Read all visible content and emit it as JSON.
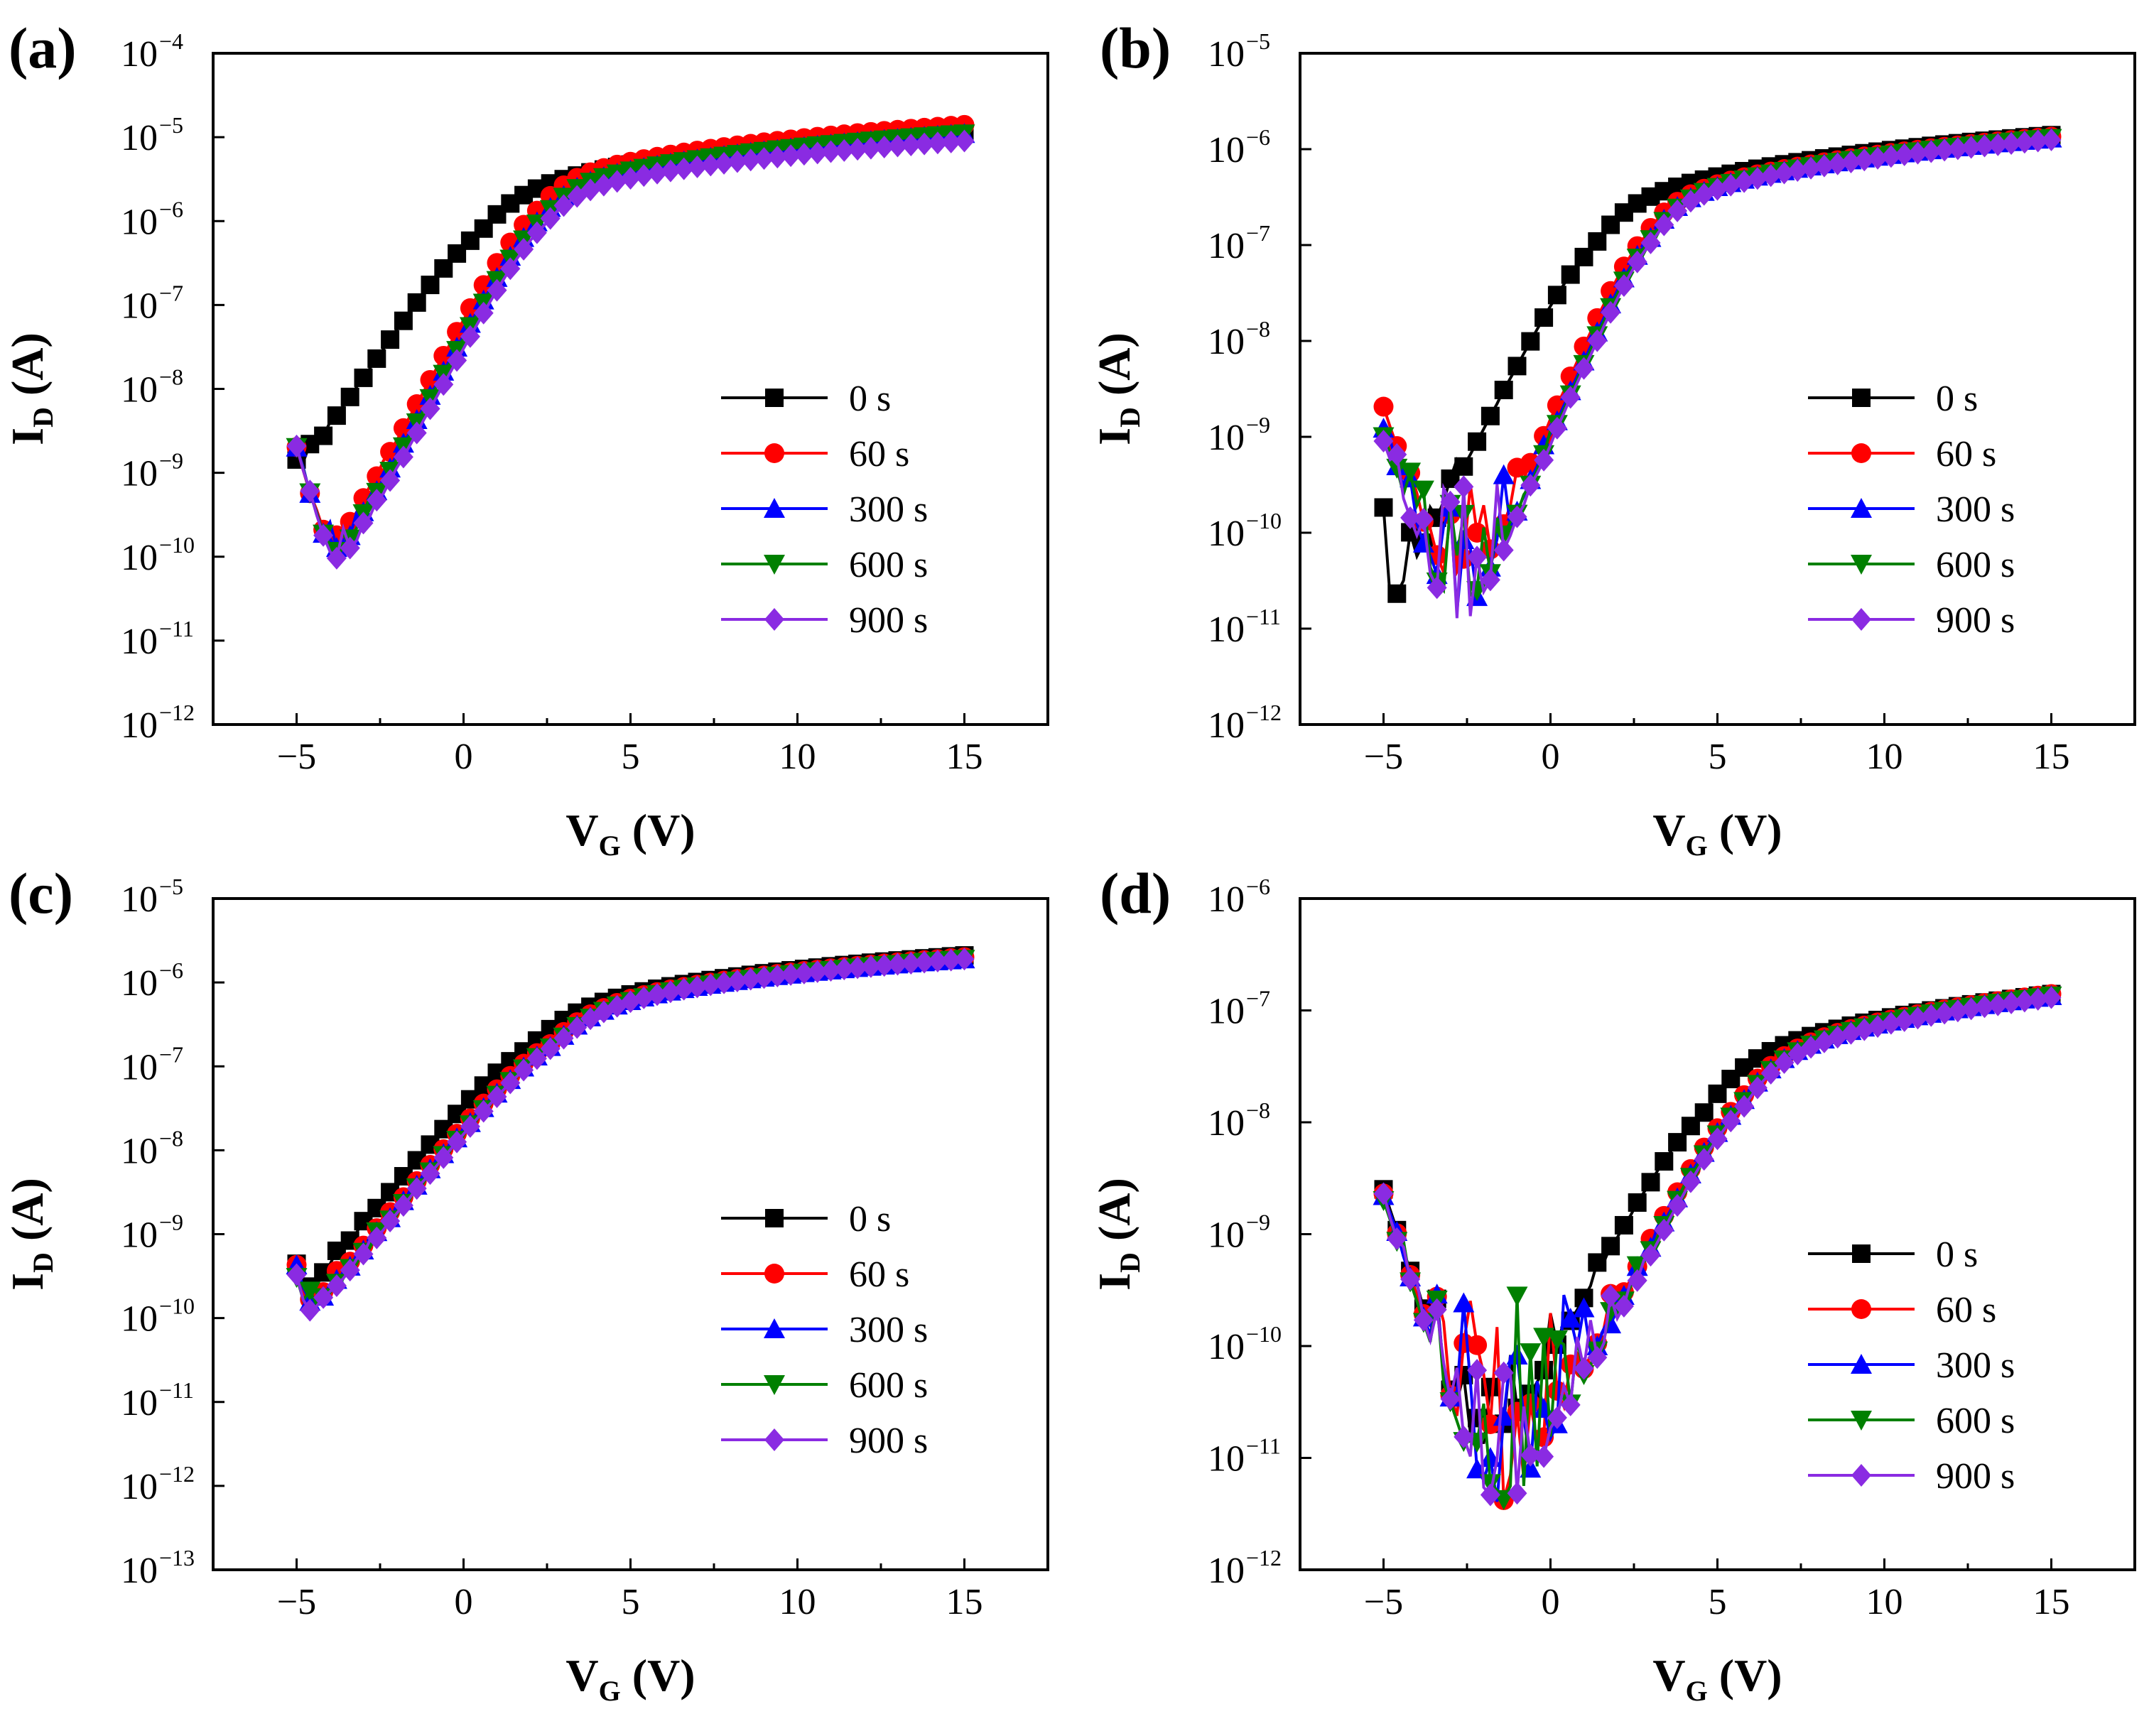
{
  "figure": {
    "series_styles": [
      {
        "name": "0 s",
        "color": "#000000",
        "marker": "square"
      },
      {
        "name": "60 s",
        "color": "#ff0000",
        "marker": "circle"
      },
      {
        "name": "300 s",
        "color": "#0000ff",
        "marker": "triangle-up"
      },
      {
        "name": "600 s",
        "color": "#008000",
        "marker": "triangle-down"
      },
      {
        "name": "900 s",
        "color": "#8a2be2",
        "marker": "diamond"
      }
    ]
  },
  "chart_data": [
    {
      "panel": "(a)",
      "type": "line",
      "xlabel_main": "V",
      "xlabel_sub": "G",
      "xlabel_unit": " (V)",
      "ylabel_main": "I",
      "ylabel_sub": "D",
      "ylabel_unit": " (A)",
      "xlim": [
        -7.5,
        17.5
      ],
      "xticks": [
        -5,
        0,
        5,
        10,
        15
      ],
      "xtick_labels": [
        "−5",
        "0",
        "5",
        "10",
        "15"
      ],
      "ylim_exp": [
        -12,
        -4
      ],
      "yticks_exp": [
        -12,
        -11,
        -10,
        -9,
        -8,
        -7,
        -6,
        -5,
        -4
      ],
      "ytick_base": "10",
      "ytick_exps": [
        "−12",
        "−11",
        "−10",
        "−9",
        "−8",
        "−7",
        "−6",
        "−5",
        "−4"
      ],
      "legend_position": "center-right",
      "series": [
        {
          "name": "0 s",
          "vth": 0.5,
          "ss": 0.75,
          "ion": 1.2e-05,
          "va": 2.0,
          "off": 3e-11,
          "noise": 1.4,
          "start": 4.5e-10,
          "decay": 0.3,
          "tail": 2.0,
          "seed": 1
        },
        {
          "name": "60 s",
          "vth": 2.2,
          "ss": 0.6,
          "ion": 1.4e-05,
          "va": 3.0,
          "off": 1.5e-11,
          "noise": 1.0,
          "start": 2e-09,
          "decay": 0.7,
          "tail": 2.5,
          "seed": 2
        },
        {
          "name": "300 s",
          "vth": 2.35,
          "ss": 0.6,
          "ion": 1.1e-05,
          "va": 3.2,
          "off": 1.5e-11,
          "noise": 1.0,
          "start": 2e-09,
          "decay": 0.7,
          "tail": 2.5,
          "seed": 3
        },
        {
          "name": "600 s",
          "vth": 2.4,
          "ss": 0.6,
          "ion": 1.1e-05,
          "va": 3.2,
          "off": 1.5e-11,
          "noise": 1.1,
          "start": 2e-09,
          "decay": 0.7,
          "tail": 2.5,
          "seed": 4
        },
        {
          "name": "900 s",
          "vth": 2.45,
          "ss": 0.6,
          "ion": 9e-06,
          "va": 3.2,
          "off": 1.3e-11,
          "noise": 1.0,
          "start": 2e-09,
          "decay": 0.7,
          "tail": 2.5,
          "seed": 5
        }
      ]
    },
    {
      "panel": "(b)",
      "type": "line",
      "xlabel_main": "V",
      "xlabel_sub": "G",
      "xlabel_unit": " (V)",
      "ylabel_main": "I",
      "ylabel_sub": "D",
      "ylabel_unit": " (A)",
      "xlim": [
        -7.5,
        17.5
      ],
      "xticks": [
        -5,
        0,
        5,
        10,
        15
      ],
      "xtick_labels": [
        "−5",
        "0",
        "5",
        "10",
        "15"
      ],
      "ylim_exp": [
        -12,
        -5
      ],
      "yticks_exp": [
        -12,
        -11,
        -10,
        -9,
        -8,
        -7,
        -6,
        -5
      ],
      "ytick_base": "10",
      "ytick_exps": [
        "−12",
        "−11",
        "−10",
        "−9",
        "−8",
        "−7",
        "−6",
        "−5"
      ],
      "legend_position": "center-right",
      "series": [
        {
          "name": "0 s",
          "vth": 1.3,
          "ss": 0.65,
          "ion": 1.4e-06,
          "va": 2.2,
          "off": 1e-11,
          "noise": 1.5,
          "start": 8e-12,
          "decay": 0.3,
          "tail": 1.0,
          "seed": 11
        },
        {
          "name": "60 s",
          "vth": 2.8,
          "ss": 0.55,
          "ion": 1.35e-06,
          "va": 2.6,
          "off": 1.5e-11,
          "noise": 1.3,
          "start": 2e-09,
          "decay": 1.0,
          "tail": 2.0,
          "seed": 12
        },
        {
          "name": "300 s",
          "vth": 3.0,
          "ss": 0.55,
          "ion": 1.3e-06,
          "va": 2.7,
          "off": 1.5e-11,
          "noise": 1.4,
          "start": 1.2e-09,
          "decay": 1.0,
          "tail": 2.0,
          "seed": 13
        },
        {
          "name": "600 s",
          "vth": 3.05,
          "ss": 0.55,
          "ion": 1.3e-06,
          "va": 2.7,
          "off": 1.5e-11,
          "noise": 1.4,
          "start": 1e-09,
          "decay": 1.0,
          "tail": 2.0,
          "seed": 14
        },
        {
          "name": "900 s",
          "vth": 3.1,
          "ss": 0.55,
          "ion": 1.25e-06,
          "va": 2.7,
          "off": 1.2e-11,
          "noise": 1.5,
          "start": 9e-10,
          "decay": 1.0,
          "tail": 2.0,
          "seed": 15
        }
      ]
    },
    {
      "panel": "(c)",
      "type": "line",
      "xlabel_main": "V",
      "xlabel_sub": "G",
      "xlabel_unit": " (V)",
      "ylabel_main": "I",
      "ylabel_sub": "D",
      "ylabel_unit": " (A)",
      "xlim": [
        -7.5,
        17.5
      ],
      "xticks": [
        -5,
        0,
        5,
        10,
        15
      ],
      "xtick_labels": [
        "−5",
        "0",
        "5",
        "10",
        "15"
      ],
      "ylim_exp": [
        -13,
        -5
      ],
      "yticks_exp": [
        -13,
        -12,
        -11,
        -10,
        -9,
        -8,
        -7,
        -6,
        -5
      ],
      "ytick_base": "10",
      "ytick_exps": [
        "−13",
        "−12",
        "−11",
        "−10",
        "−9",
        "−8",
        "−7",
        "−6",
        "−5"
      ],
      "legend_position": "center-right",
      "series": [
        {
          "name": "0 s",
          "vth": 2.0,
          "ss": 0.9,
          "ion": 2.1e-06,
          "va": 2.5,
          "off": 8e-12,
          "noise": 1.2,
          "start": 3e-10,
          "decay": 0.3,
          "tail": 1.0,
          "seed": 21
        },
        {
          "name": "60 s",
          "vth": 2.6,
          "ss": 0.9,
          "ion": 2e-06,
          "va": 2.8,
          "off": 1e-11,
          "noise": 1.3,
          "start": 3.5e-10,
          "decay": 0.4,
          "tail": 1.0,
          "seed": 22
        },
        {
          "name": "300 s",
          "vth": 2.7,
          "ss": 0.9,
          "ion": 1.9e-06,
          "va": 2.9,
          "off": 8e-12,
          "noise": 1.3,
          "start": 2.5e-10,
          "decay": 0.4,
          "tail": 1.0,
          "seed": 23
        },
        {
          "name": "600 s",
          "vth": 2.75,
          "ss": 0.9,
          "ion": 1.9e-06,
          "va": 2.9,
          "off": 8e-12,
          "noise": 1.3,
          "start": 2e-10,
          "decay": 0.4,
          "tail": 1.0,
          "seed": 24
        },
        {
          "name": "900 s",
          "vth": 2.8,
          "ss": 0.9,
          "ion": 1.9e-06,
          "va": 2.9,
          "off": 9e-12,
          "noise": 1.2,
          "start": 2.5e-10,
          "decay": 0.4,
          "tail": 1.0,
          "seed": 25
        }
      ]
    },
    {
      "panel": "(d)",
      "type": "line",
      "xlabel_main": "V",
      "xlabel_sub": "G",
      "xlabel_unit": " (V)",
      "ylabel_main": "I",
      "ylabel_sub": "D",
      "ylabel_unit": " (A)",
      "xlim": [
        -7.5,
        17.5
      ],
      "xticks": [
        -5,
        0,
        5,
        10,
        15
      ],
      "xtick_labels": [
        "−5",
        "0",
        "5",
        "10",
        "15"
      ],
      "ylim_exp": [
        -12,
        -6
      ],
      "yticks_exp": [
        -12,
        -11,
        -10,
        -9,
        -8,
        -7,
        -6
      ],
      "ytick_base": "10",
      "ytick_exps": [
        "−12",
        "−11",
        "−10",
        "−9",
        "−8",
        "−7",
        "−6"
      ],
      "legend_position": "center-right",
      "series": [
        {
          "name": "0 s",
          "vth": 4.6,
          "ss": 0.8,
          "ion": 1.4e-07,
          "va": 2.2,
          "off": 8e-12,
          "noise": 1.4,
          "start": 2.5e-09,
          "decay": 1.1,
          "tail": 3.2,
          "seed": 31
        },
        {
          "name": "60 s",
          "vth": 5.6,
          "ss": 0.75,
          "ion": 1.4e-07,
          "va": 2.4,
          "off": 1e-11,
          "noise": 1.4,
          "start": 2.3e-09,
          "decay": 1.1,
          "tail": 3.2,
          "seed": 32
        },
        {
          "name": "300 s",
          "vth": 5.7,
          "ss": 0.75,
          "ion": 1.35e-07,
          "va": 2.5,
          "off": 1e-11,
          "noise": 1.5,
          "start": 2.2e-09,
          "decay": 1.1,
          "tail": 3.2,
          "seed": 33
        },
        {
          "name": "600 s",
          "vth": 5.75,
          "ss": 0.75,
          "ion": 1.35e-07,
          "va": 2.5,
          "off": 1e-11,
          "noise": 1.5,
          "start": 2e-09,
          "decay": 1.1,
          "tail": 3.2,
          "seed": 34
        },
        {
          "name": "900 s",
          "vth": 5.8,
          "ss": 0.75,
          "ion": 1.3e-07,
          "va": 2.5,
          "off": 1e-11,
          "noise": 1.4,
          "start": 2.1e-09,
          "decay": 1.1,
          "tail": 3.2,
          "seed": 35
        }
      ]
    }
  ]
}
